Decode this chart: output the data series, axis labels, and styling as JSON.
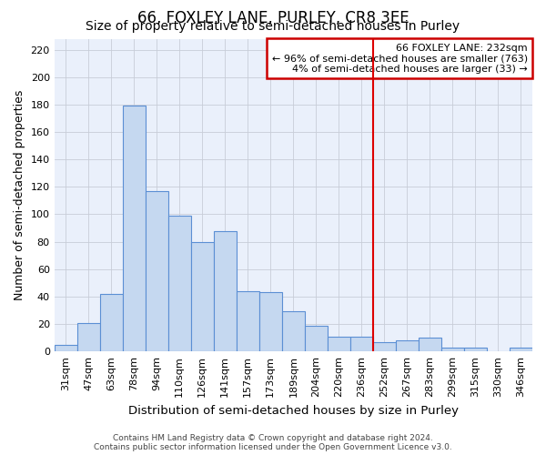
{
  "title": "66, FOXLEY LANE, PURLEY, CR8 3EE",
  "subtitle": "Size of property relative to semi-detached houses in Purley",
  "xlabel": "Distribution of semi-detached houses by size in Purley",
  "ylabel": "Number of semi-detached properties",
  "categories": [
    "31sqm",
    "47sqm",
    "63sqm",
    "78sqm",
    "94sqm",
    "110sqm",
    "126sqm",
    "141sqm",
    "157sqm",
    "173sqm",
    "189sqm",
    "204sqm",
    "220sqm",
    "236sqm",
    "252sqm",
    "267sqm",
    "283sqm",
    "299sqm",
    "315sqm",
    "330sqm",
    "346sqm"
  ],
  "values": [
    5,
    21,
    42,
    179,
    117,
    99,
    80,
    88,
    44,
    43,
    29,
    19,
    11,
    11,
    7,
    8,
    10,
    3,
    3,
    0,
    3
  ],
  "bar_color": "#c5d8f0",
  "bar_edge_color": "#5b8fd4",
  "background_color": "#ffffff",
  "plot_bg_color": "#eaf0fb",
  "grid_color": "#c8cdd8",
  "vline_x": 13.5,
  "vline_color": "#dd0000",
  "annotation_title": "66 FOXLEY LANE: 232sqm",
  "annotation_line1": "← 96% of semi-detached houses are smaller (763)",
  "annotation_line2": "4% of semi-detached houses are larger (33) →",
  "annotation_box_color": "#ffffff",
  "annotation_box_edge": "#cc0000",
  "footer": "Contains HM Land Registry data © Crown copyright and database right 2024.\nContains public sector information licensed under the Open Government Licence v3.0.",
  "ylim": [
    0,
    228
  ],
  "yticks": [
    0,
    20,
    40,
    60,
    80,
    100,
    120,
    140,
    160,
    180,
    200,
    220
  ],
  "title_fontsize": 12,
  "subtitle_fontsize": 10,
  "tick_fontsize": 8,
  "ylabel_fontsize": 9,
  "xlabel_fontsize": 9.5,
  "footer_fontsize": 6.5,
  "ann_fontsize": 8
}
